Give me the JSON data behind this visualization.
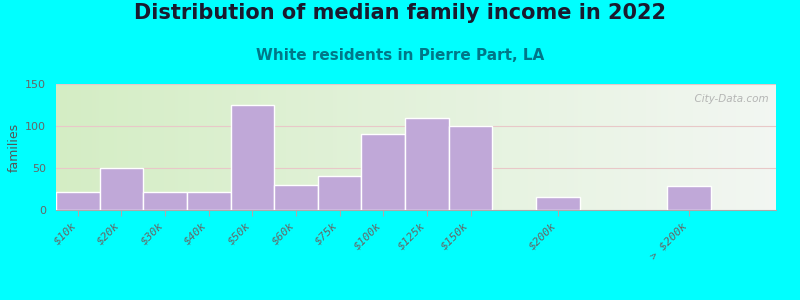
{
  "title": "Distribution of median family income in 2022",
  "subtitle": "White residents in Pierre Part, LA",
  "ylabel": "families",
  "background_outer": "#00FFFF",
  "bar_color": "#c0a8d8",
  "bar_edge_color": "#ffffff",
  "categories": [
    "$10k",
    "$20k",
    "$30k",
    "$40k",
    "$50k",
    "$60k",
    "$75k",
    "$100k",
    "$125k",
    "$150k",
    "$200k",
    "> $200k"
  ],
  "values": [
    22,
    50,
    22,
    22,
    125,
    30,
    40,
    90,
    110,
    100,
    15,
    28
  ],
  "x_positions": [
    0,
    1,
    2,
    3,
    4,
    5,
    6,
    7,
    8,
    9,
    11,
    14
  ],
  "ylim": [
    0,
    150
  ],
  "yticks": [
    0,
    50,
    100,
    150
  ],
  "watermark": "  City-Data.com",
  "title_fontsize": 15,
  "subtitle_fontsize": 11,
  "ylabel_fontsize": 9,
  "tick_fontsize": 8,
  "bg_left_color": "#d4edc4",
  "bg_right_color": "#f0f4ee"
}
